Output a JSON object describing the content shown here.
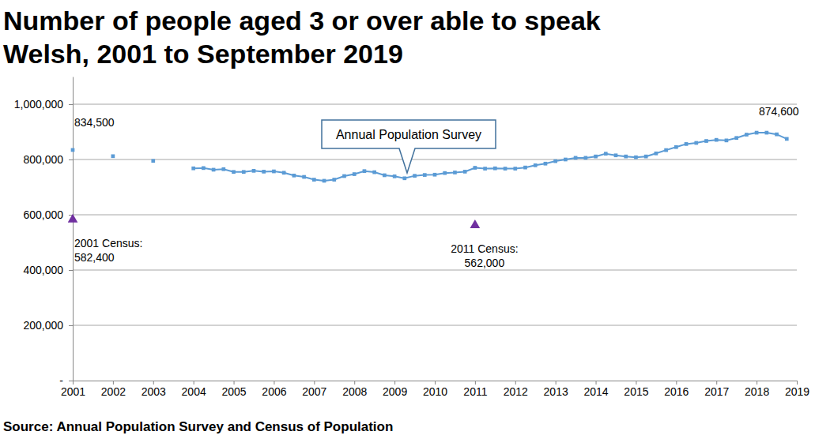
{
  "chart_data": {
    "type": "line",
    "title": "Number of people aged 3 or over able to speak\nWelsh, 2001 to September 2019",
    "source": "Source: Annual Population Survey and Census of Population",
    "annotations": [
      {
        "text": "Annual Population Survey"
      }
    ],
    "xlim": [
      2001,
      2019
    ],
    "xticks": [
      2001,
      2002,
      2003,
      2004,
      2005,
      2006,
      2007,
      2008,
      2009,
      2010,
      2011,
      2012,
      2013,
      2014,
      2015,
      2016,
      2017,
      2018,
      2019
    ],
    "ylim": [
      0,
      1100000
    ],
    "yticks": [
      {
        "value": 0,
        "label": "-"
      },
      {
        "value": 200000,
        "label": "200,000"
      },
      {
        "value": 400000,
        "label": "400,000"
      },
      {
        "value": 600000,
        "label": "600,000"
      },
      {
        "value": 800000,
        "label": "800,000"
      },
      {
        "value": 1000000,
        "label": "1,000,000"
      }
    ],
    "grid": true,
    "series": [
      {
        "type": "scatter",
        "marker": "square",
        "color": "#5b9bd5",
        "x": [
          2001,
          2002,
          2003
        ],
        "values": [
          834500,
          812000,
          795000
        ],
        "value_labels": [
          "834,500",
          null,
          null
        ]
      },
      {
        "type": "line",
        "marker": "square",
        "color": "#5b9bd5",
        "x": [
          2004,
          2004.25,
          2004.5,
          2004.75,
          2005,
          2005.25,
          2005.5,
          2005.75,
          2006,
          2006.25,
          2006.5,
          2006.75,
          2007,
          2007.25,
          2007.5,
          2007.75,
          2008,
          2008.25,
          2008.5,
          2008.75,
          2009,
          2009.25,
          2009.5,
          2009.75,
          2010,
          2010.25,
          2010.5,
          2010.75,
          2011,
          2011.25,
          2011.5,
          2011.75,
          2012,
          2012.25,
          2012.5,
          2012.75,
          2013,
          2013.25,
          2013.5,
          2013.75,
          2014,
          2014.25,
          2014.5,
          2014.75,
          2015,
          2015.25,
          2015.5,
          2015.75,
          2016,
          2016.25,
          2016.5,
          2016.75,
          2017,
          2017.25,
          2017.5,
          2017.75,
          2018,
          2018.25,
          2018.5,
          2018.75
        ],
        "values": [
          768000,
          769000,
          763000,
          765000,
          755000,
          755000,
          759000,
          756000,
          757000,
          752000,
          742000,
          737000,
          727000,
          723000,
          727000,
          740000,
          747000,
          758000,
          754000,
          743000,
          739000,
          732000,
          741000,
          744000,
          745000,
          751000,
          753000,
          756000,
          770000,
          767000,
          768000,
          767000,
          767000,
          771000,
          779000,
          785000,
          794000,
          800000,
          806000,
          806000,
          811000,
          821000,
          815000,
          811000,
          808000,
          811000,
          822000,
          834000,
          845000,
          856000,
          860000,
          867000,
          871000,
          869000,
          878000,
          890000,
          897000,
          897000,
          891000,
          874600
        ],
        "value_labels": [
          null,
          null,
          null,
          null,
          null,
          null,
          null,
          null,
          null,
          null,
          null,
          null,
          null,
          null,
          null,
          null,
          null,
          null,
          null,
          null,
          null,
          null,
          null,
          null,
          null,
          null,
          null,
          null,
          null,
          null,
          null,
          null,
          null,
          null,
          null,
          null,
          null,
          null,
          null,
          null,
          null,
          null,
          null,
          null,
          null,
          null,
          null,
          null,
          null,
          null,
          null,
          null,
          null,
          null,
          null,
          null,
          null,
          null,
          null,
          "874,600"
        ]
      },
      {
        "type": "scatter",
        "marker": "triangle",
        "color": "#7030a0",
        "x": [
          2001,
          2011
        ],
        "values": [
          582400,
          562000
        ],
        "value_labels": [
          "2001 Census:\n582,400",
          "2011 Census:\n562,000"
        ]
      }
    ]
  }
}
